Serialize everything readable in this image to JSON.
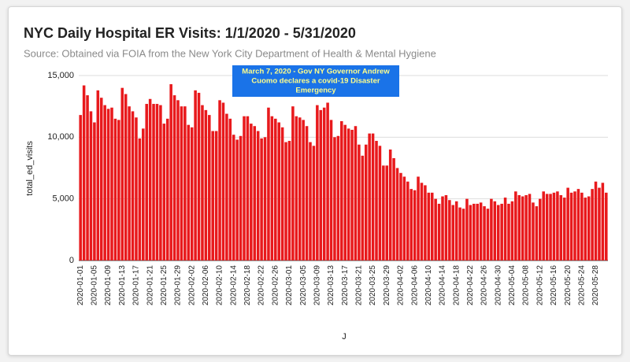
{
  "chart_data": {
    "type": "bar",
    "title": "NYC Daily Hospital ER Visits: 1/1/2020 - 5/31/2020",
    "subtitle": "Source: Obtained via FOIA from the New York City Department of Health & Mental Hygiene",
    "x_label": "J",
    "y_label": "total_ed_visits",
    "annotation": {
      "lines": [
        "March 7, 2020 - Gov NY Governor Andrew",
        "Cuomo declares a covid-19 Disaster",
        "Emergency"
      ],
      "category": "2020-03-07"
    },
    "categories": [
      "2020-01-01",
      null,
      null,
      null,
      "2020-01-05",
      null,
      null,
      null,
      "2020-01-09",
      null,
      null,
      null,
      "2020-01-13",
      null,
      null,
      null,
      "2020-01-17",
      null,
      null,
      null,
      "2020-01-21",
      null,
      null,
      null,
      "2020-01-25",
      null,
      null,
      null,
      "2020-01-29",
      null,
      null,
      null,
      "2020-02-02",
      null,
      null,
      null,
      "2020-02-06",
      null,
      null,
      null,
      "2020-02-10",
      null,
      null,
      null,
      "2020-02-14",
      null,
      null,
      null,
      "2020-02-18",
      null,
      null,
      null,
      "2020-02-22",
      null,
      null,
      null,
      "2020-02-26",
      null,
      null,
      null,
      "2020-03-01",
      null,
      null,
      null,
      "2020-03-05",
      null,
      null,
      null,
      "2020-03-09",
      null,
      null,
      null,
      "2020-03-13",
      null,
      null,
      null,
      "2020-03-17",
      null,
      null,
      null,
      "2020-03-21",
      null,
      null,
      null,
      "2020-03-25",
      null,
      null,
      null,
      "2020-03-29",
      null,
      null,
      null,
      "2020-04-02",
      null,
      null,
      null,
      "2020-04-06",
      null,
      null,
      null,
      "2020-04-10",
      null,
      null,
      null,
      "2020-04-14",
      null,
      null,
      null,
      "2020-04-18",
      null,
      null,
      null,
      "2020-04-22",
      null,
      null,
      null,
      "2020-04-26",
      null,
      null,
      null,
      "2020-04-30",
      null,
      null,
      null,
      "2020-05-04",
      null,
      null,
      null,
      "2020-05-08",
      null,
      null,
      null,
      "2020-05-12",
      null,
      null,
      null,
      "2020-05-16",
      null,
      null,
      null,
      "2020-05-20",
      null,
      null,
      null,
      "2020-05-24",
      null,
      null,
      null,
      "2020-05-28",
      null,
      null,
      null
    ],
    "values": [
      11800,
      14200,
      13400,
      12100,
      11200,
      13800,
      13200,
      12600,
      12300,
      12400,
      11500,
      11400,
      14000,
      13500,
      12500,
      12100,
      11600,
      9900,
      10700,
      12700,
      13100,
      12700,
      12700,
      12600,
      11100,
      11500,
      14300,
      13400,
      13000,
      12500,
      12500,
      11000,
      10800,
      13800,
      13600,
      12600,
      12200,
      11800,
      10500,
      10500,
      13000,
      12800,
      11900,
      11500,
      10200,
      9800,
      10100,
      11700,
      11700,
      11100,
      10900,
      10500,
      9900,
      10000,
      12400,
      11700,
      11500,
      11200,
      10800,
      9600,
      9700,
      12500,
      11700,
      11600,
      11400,
      10900,
      9600,
      9300,
      12600,
      12200,
      12400,
      12800,
      11400,
      10000,
      10100,
      11300,
      11000,
      10700,
      10600,
      10900,
      9400,
      8500,
      9400,
      10300,
      10300,
      9700,
      9300,
      7700,
      7700,
      9000,
      8300,
      7500,
      7100,
      6800,
      6400,
      5800,
      5700,
      6800,
      6300,
      6100,
      5500,
      5500,
      5000,
      4600,
      5200,
      5300,
      4900,
      4500,
      4800,
      4300,
      4200,
      5000,
      4500,
      4600,
      4600,
      4700,
      4400,
      4200,
      5000,
      4800,
      4500,
      4600,
      5100,
      4600,
      4800,
      5600,
      5300,
      5200,
      5300,
      5400,
      4700,
      4400,
      5000,
      5600,
      5400,
      5400,
      5500,
      5600,
      5300,
      5100,
      5900,
      5500,
      5600,
      5800,
      5500,
      5100,
      5200,
      5800,
      6400,
      5900,
      6300,
      5500
    ],
    "color": "#e8191c",
    "annotation_color": "#1a73e8",
    "annotation_text_color": "#ffff8d",
    "ylim": [
      0,
      15000
    ],
    "yticks": [
      0,
      {
        "value": 5000,
        "label": "5,000"
      },
      {
        "value": 10000,
        "label": "10,000"
      },
      {
        "value": 15000,
        "label": "15,000"
      }
    ],
    "grid": true
  }
}
